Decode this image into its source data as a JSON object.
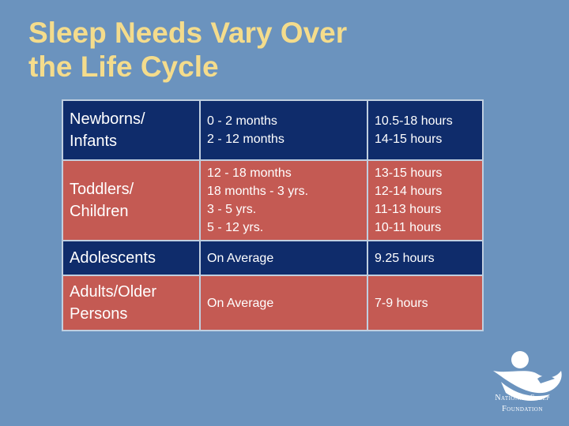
{
  "title": {
    "line1": "Sleep Needs Vary Over",
    "line2": "the Life Cycle"
  },
  "rows": [
    {
      "group": [
        "Newborns/",
        "Infants"
      ],
      "ages": [
        "0 - 2 months",
        "2 - 12 months"
      ],
      "hours": [
        "10.5-18 hours",
        "14-15 hours"
      ]
    },
    {
      "group": [
        "Toddlers/",
        "Children"
      ],
      "ages": [
        "12 - 18 months",
        "18 months - 3 yrs.",
        "3 - 5 yrs.",
        "5 - 12 yrs."
      ],
      "hours": [
        "13-15 hours",
        "12-14 hours",
        "11-13 hours",
        "10-11 hours"
      ]
    },
    {
      "group": [
        "Adolescents"
      ],
      "ages": [
        "On Average"
      ],
      "hours": [
        "9.25 hours"
      ]
    },
    {
      "group": [
        "Adults/Older",
        "Persons"
      ],
      "ages": [
        "On Average"
      ],
      "hours": [
        "7-9 hours"
      ]
    }
  ],
  "logo": {
    "line1": "National Sleep",
    "line2": "Foundation",
    "icon": "sleeping-person-icon"
  },
  "colors": {
    "background": "#6b93be",
    "title": "#f4dc8c",
    "navy_row": "#0f2c6b",
    "brick_row": "#c45a53"
  }
}
